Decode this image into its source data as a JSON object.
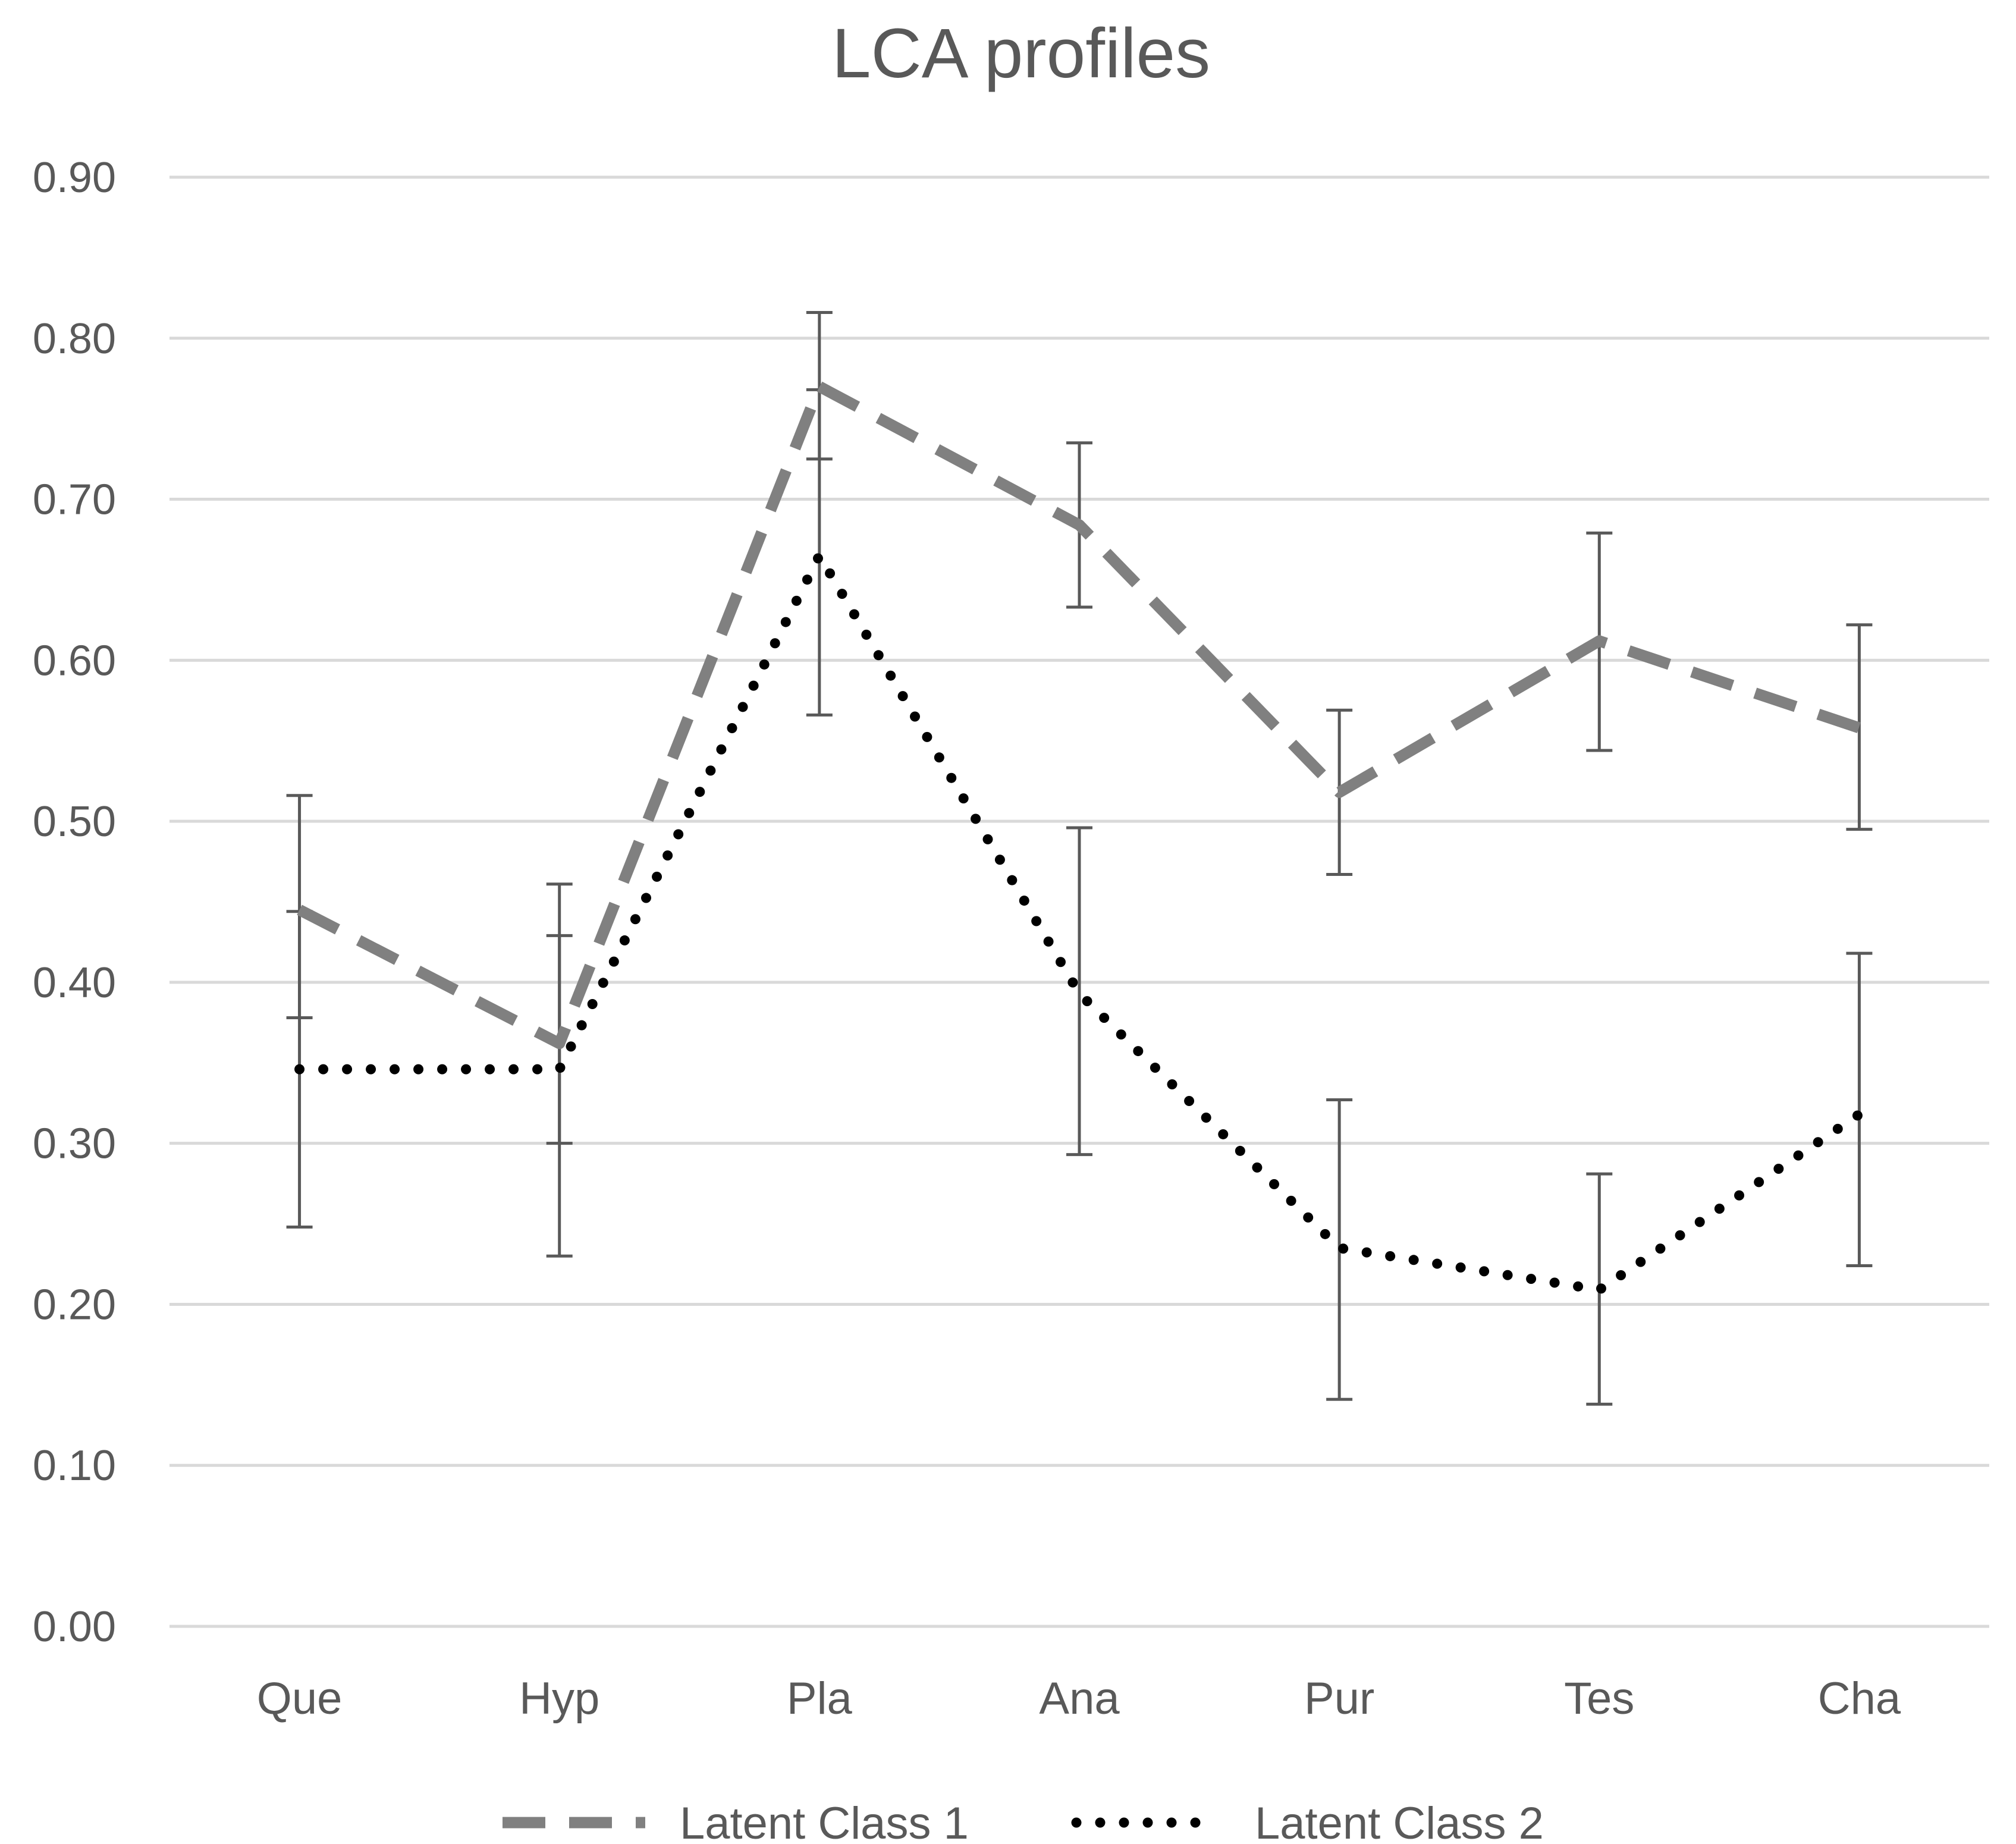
{
  "chart_data": {
    "type": "line",
    "title": "LCA profiles",
    "xlabel": "",
    "ylabel": "",
    "categories": [
      "Que",
      "Hyp",
      "Pla",
      "Ana",
      "Pur",
      "Tes",
      "Cha"
    ],
    "ylim": [
      0,
      0.9
    ],
    "yticks": [
      "0.00",
      "0.10",
      "0.20",
      "0.30",
      "0.40",
      "0.50",
      "0.60",
      "0.70",
      "0.80",
      "0.90"
    ],
    "grid": true,
    "legend_position": "bottom",
    "series": [
      {
        "name": "Latent Class 1",
        "style": "dashed",
        "color": "#808080",
        "values": [
          0.445,
          0.362,
          0.77,
          0.684,
          0.518,
          0.612,
          0.558
        ],
        "error_low": [
          0.378,
          0.3,
          0.725,
          0.633,
          0.467,
          0.544,
          0.495
        ],
        "error_high": [
          0.516,
          0.429,
          0.816,
          0.735,
          0.569,
          0.679,
          0.622
        ]
      },
      {
        "name": "Latent Class 2",
        "style": "dotted",
        "color": "#000000",
        "values": [
          0.346,
          0.346,
          0.665,
          0.393,
          0.235,
          0.209,
          0.318
        ],
        "error_low": [
          0.248,
          0.23,
          0.566,
          0.293,
          0.141,
          0.138,
          0.224
        ],
        "error_high": [
          0.444,
          0.461,
          0.768,
          0.496,
          0.327,
          0.281,
          0.418
        ]
      }
    ]
  }
}
